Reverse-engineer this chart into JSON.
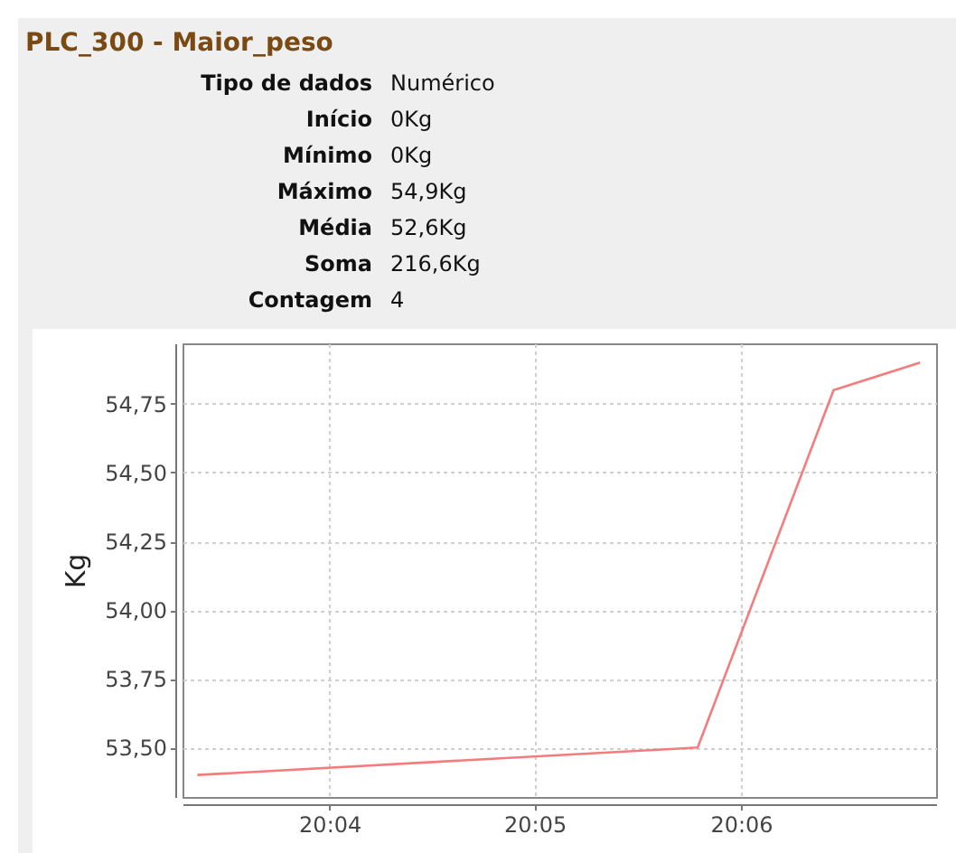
{
  "chart_data": {
    "type": "line",
    "title": "PLC_300 - Maior_peso",
    "ylabel": "Kg",
    "annotations": [
      "Tipo de dados",
      "Numérico",
      "Início",
      "0Kg",
      "Mínimo",
      "0Kg",
      "Máximo",
      "54,9Kg",
      "Média",
      "52,6Kg",
      "Soma",
      "216,6Kg",
      "Contagem",
      "4"
    ],
    "x": [
      20.056,
      20.0965,
      20.1075,
      20.1145
    ],
    "series": [
      {
        "color": "#f47c7c",
        "values": [
          53.4,
          53.5,
          54.8,
          54.9
        ]
      }
    ],
    "xlim": [
      20.0548,
      20.1158
    ],
    "xticks": [
      {
        "value": 20.0667,
        "label": "20:04"
      },
      {
        "value": 20.0833,
        "label": "20:05"
      },
      {
        "value": 20.1,
        "label": "20:06"
      }
    ],
    "ylim": [
      53.32,
      54.97
    ],
    "yticks": [
      {
        "value": 53.5,
        "label": "53,50"
      },
      {
        "value": 53.75,
        "label": "53,75"
      },
      {
        "value": 54,
        "label": "54,00"
      },
      {
        "value": 54.25,
        "label": "54,25"
      },
      {
        "value": 54.5,
        "label": "54,50"
      },
      {
        "value": 54.75,
        "label": "54,75"
      }
    ],
    "grid": true,
    "marker": "none",
    "line_style": "solid"
  }
}
